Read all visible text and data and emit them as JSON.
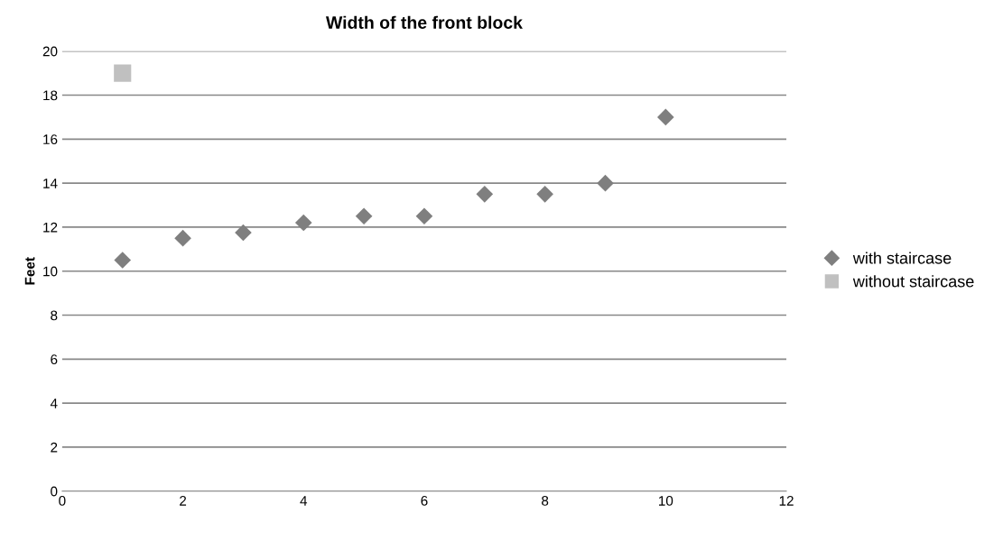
{
  "chart_data": {
    "type": "scatter",
    "title": "Width of the front block",
    "ylabel": "Feet",
    "series": [
      {
        "name": "with staircase",
        "color": "#7f7f7f",
        "marker": "diamond",
        "x": [
          1,
          2,
          3,
          4,
          5,
          6,
          7,
          8,
          9,
          10
        ],
        "values": [
          10.5,
          11.5,
          11.75,
          12.2,
          12.5,
          12.5,
          13.5,
          13.5,
          14,
          17
        ]
      },
      {
        "name": "without staircase",
        "color": "#c0c0c0",
        "marker": "square",
        "x": [
          1
        ],
        "values": [
          19
        ]
      }
    ],
    "xlim": [
      0,
      12
    ],
    "xticks": [
      0,
      2,
      4,
      6,
      8,
      10,
      12
    ],
    "ylim": [
      0,
      20
    ],
    "yticks": [
      0,
      2,
      4,
      6,
      8,
      10,
      12,
      14,
      16,
      18,
      20
    ],
    "grid": "y",
    "legend": "right"
  }
}
